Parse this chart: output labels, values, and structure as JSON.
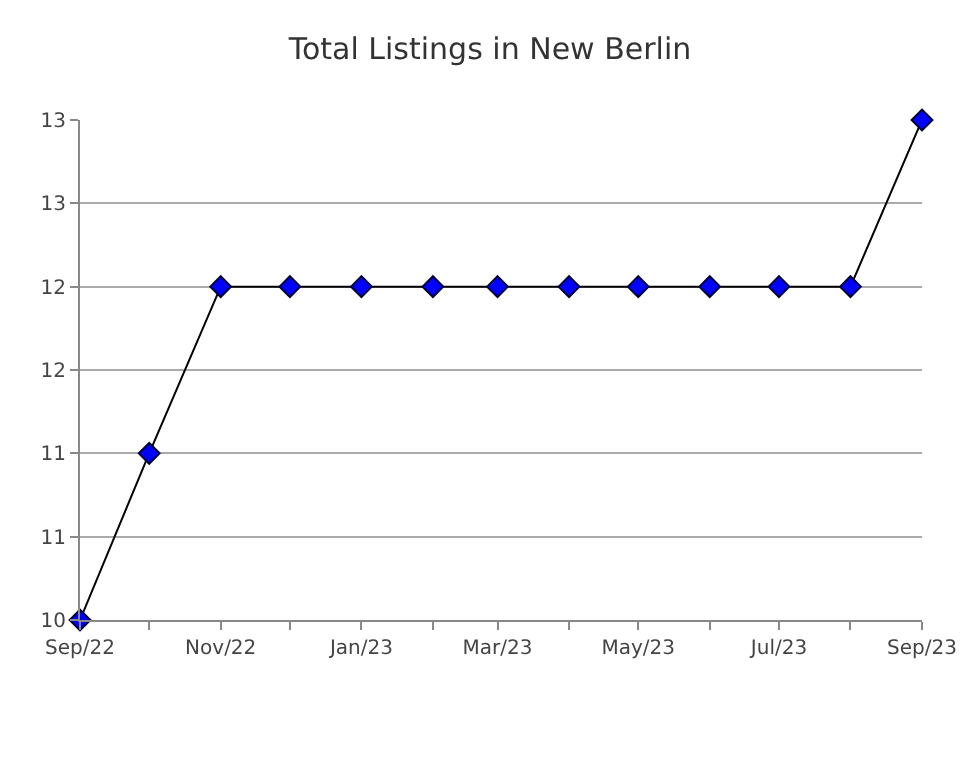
{
  "chart_data": {
    "type": "line",
    "title": "Total Listings in New Berlin",
    "x": [
      "2022-09",
      "2022-10",
      "2022-11",
      "2022-12",
      "2023-01",
      "2023-02",
      "2023-03",
      "2023-04",
      "2023-05",
      "2023-06",
      "2023-07",
      "2023-08",
      "2023-09"
    ],
    "series": [
      {
        "color": "#0000ff",
        "values": [
          10,
          11,
          12,
          12,
          12,
          12,
          12,
          12,
          12,
          12,
          12,
          12,
          13
        ]
      }
    ],
    "xlim": [
      "2022-09",
      "2023-09"
    ],
    "xticks": [
      {
        "value": "2022-09",
        "label": "Sep/22"
      },
      {
        "value": "2022-10",
        "label": null
      },
      {
        "value": "2022-11",
        "label": "Nov/22"
      },
      {
        "value": "2022-12",
        "label": null
      },
      {
        "value": "2023-01",
        "label": "Jan/23"
      },
      {
        "value": "2023-02",
        "label": null
      },
      {
        "value": "2023-03",
        "label": "Mar/23"
      },
      {
        "value": "2023-04",
        "label": null
      },
      {
        "value": "2023-05",
        "label": "May/23"
      },
      {
        "value": "2023-06",
        "label": null
      },
      {
        "value": "2023-07",
        "label": "Jul/23"
      },
      {
        "value": "2023-08",
        "label": null
      },
      {
        "value": "2023-09",
        "label": "Sep/23"
      }
    ],
    "ylim": [
      10,
      13
    ],
    "yticks": [
      10,
      {
        "value": 10.5,
        "label": "11"
      },
      11,
      {
        "value": 11.5,
        "label": "12"
      },
      12,
      {
        "value": 12.5,
        "label": "13"
      },
      13
    ],
    "grid": "y",
    "marker": "diamond",
    "line_style": "solid",
    "legend": false
  }
}
